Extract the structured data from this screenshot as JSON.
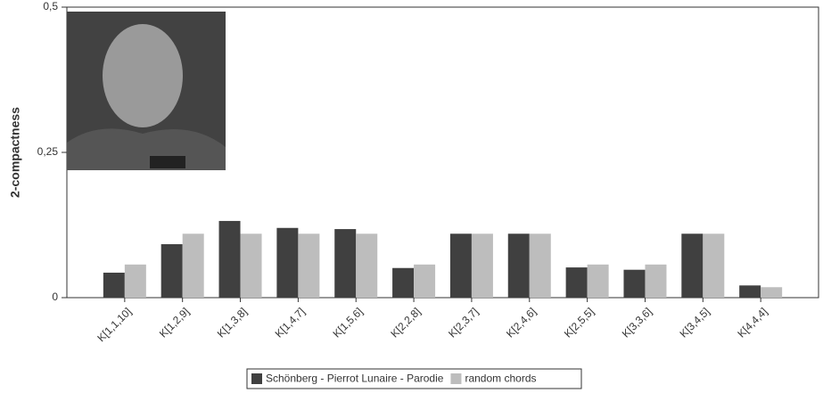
{
  "chart_data": {
    "type": "bar",
    "y_label": "2-compactness",
    "categories": [
      "K[1,1,10]",
      "K[1,2,9]",
      "K[1,3,8]",
      "K[1,4,7]",
      "K[1,5,6]",
      "K[2,2,8]",
      "K[2,3,7]",
      "K[2,4,6]",
      "K[2,5,5]",
      "K[3,3,6]",
      "K[3,4,5]",
      "K[4,4,4]"
    ],
    "series": [
      {
        "name": "Schönberg - Pierrot Lunaire - Parodie",
        "color": "#404040",
        "values": [
          0.043,
          0.092,
          0.132,
          0.12,
          0.118,
          0.051,
          0.11,
          0.11,
          0.052,
          0.048,
          0.11,
          0.021
        ]
      },
      {
        "name": "random chords",
        "color": "#bdbdbd",
        "values": [
          0.057,
          0.11,
          0.11,
          0.11,
          0.11,
          0.057,
          0.11,
          0.11,
          0.057,
          0.057,
          0.11,
          0.018
        ]
      }
    ],
    "ylim": [
      0,
      0.5
    ],
    "yticks": [
      0,
      {
        "value": 0.25,
        "label": "0,25"
      },
      {
        "value": 0.5,
        "label": "0,5"
      }
    ],
    "legend": "bottom"
  }
}
